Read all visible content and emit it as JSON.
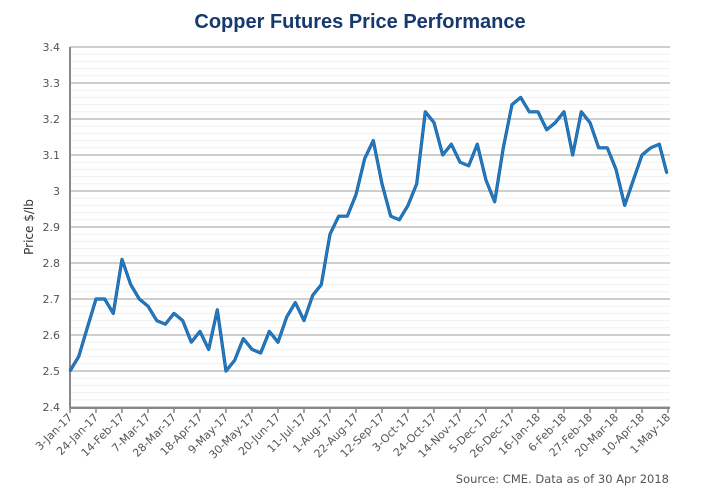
{
  "chart_data": {
    "type": "line",
    "title": "Copper Futures Price Performance",
    "xlabel": "",
    "ylabel": "Price $/lb",
    "ylim": [
      2.4,
      3.4
    ],
    "xlim": [
      "2017-01-03",
      "2018-05-01"
    ],
    "grid": true,
    "legend": "none",
    "source": "Source: CME. Data as of 30 Apr 2018",
    "colors": {
      "line": "#1e7bc4",
      "line_dark": "#17508a",
      "grid": "#bdbdbd",
      "title": "#163a6e"
    },
    "y_ticks": [
      "2.4",
      "2.5",
      "2.6",
      "2.7",
      "2.8",
      "2.9",
      "3",
      "3.1",
      "3.2",
      "3.3",
      "3.4"
    ],
    "x_ticks": [
      "3-Jan-17",
      "24-Jan-17",
      "14-Feb-17",
      "7-Mar-17",
      "28-Mar-17",
      "18-Apr-17",
      "9-May-17",
      "30-May-17",
      "20-Jun-17",
      "11-Jul-17",
      "1-Aug-17",
      "22-Aug-17",
      "12-Sep-17",
      "3-Oct-17",
      "24-Oct-17",
      "14-Nov-17",
      "5-Dec-17",
      "26-Dec-17",
      "16-Jan-18",
      "6-Feb-18",
      "27-Feb-18",
      "20-Mar-18",
      "10-Apr-18",
      "1-May-18"
    ],
    "x": [
      "2017-01-03",
      "2017-01-10",
      "2017-01-17",
      "2017-01-24",
      "2017-01-31",
      "2017-02-07",
      "2017-02-14",
      "2017-02-21",
      "2017-02-28",
      "2017-03-07",
      "2017-03-14",
      "2017-03-21",
      "2017-03-28",
      "2017-04-04",
      "2017-04-11",
      "2017-04-18",
      "2017-04-25",
      "2017-05-02",
      "2017-05-09",
      "2017-05-16",
      "2017-05-23",
      "2017-05-30",
      "2017-06-06",
      "2017-06-13",
      "2017-06-20",
      "2017-06-27",
      "2017-07-04",
      "2017-07-11",
      "2017-07-18",
      "2017-07-25",
      "2017-08-01",
      "2017-08-08",
      "2017-08-15",
      "2017-08-22",
      "2017-08-29",
      "2017-09-05",
      "2017-09-12",
      "2017-09-19",
      "2017-09-26",
      "2017-10-03",
      "2017-10-10",
      "2017-10-17",
      "2017-10-24",
      "2017-10-31",
      "2017-11-07",
      "2017-11-14",
      "2017-11-21",
      "2017-11-28",
      "2017-12-05",
      "2017-12-12",
      "2017-12-19",
      "2017-12-26",
      "2018-01-02",
      "2018-01-09",
      "2018-01-16",
      "2018-01-23",
      "2018-01-30",
      "2018-02-06",
      "2018-02-13",
      "2018-02-20",
      "2018-02-27",
      "2018-03-06",
      "2018-03-13",
      "2018-03-20",
      "2018-03-27",
      "2018-04-03",
      "2018-04-10",
      "2018-04-17",
      "2018-04-24",
      "2018-04-30"
    ],
    "series": [
      {
        "values": [
          2.5,
          2.54,
          2.62,
          2.7,
          2.7,
          2.66,
          2.81,
          2.74,
          2.7,
          2.68,
          2.64,
          2.63,
          2.66,
          2.64,
          2.58,
          2.61,
          2.56,
          2.67,
          2.5,
          2.53,
          2.59,
          2.56,
          2.55,
          2.61,
          2.58,
          2.65,
          2.69,
          2.64,
          2.71,
          2.74,
          2.88,
          2.93,
          2.93,
          2.99,
          3.09,
          3.14,
          3.02,
          2.93,
          2.92,
          2.96,
          3.02,
          3.22,
          3.19,
          3.1,
          3.13,
          3.08,
          3.07,
          3.13,
          3.03,
          2.97,
          3.12,
          3.24,
          3.26,
          3.22,
          3.22,
          3.17,
          3.19,
          3.22,
          3.1,
          3.22,
          3.19,
          3.12,
          3.12,
          3.06,
          2.96,
          3.03,
          3.1,
          3.12,
          3.13,
          3.05
        ]
      }
    ]
  }
}
